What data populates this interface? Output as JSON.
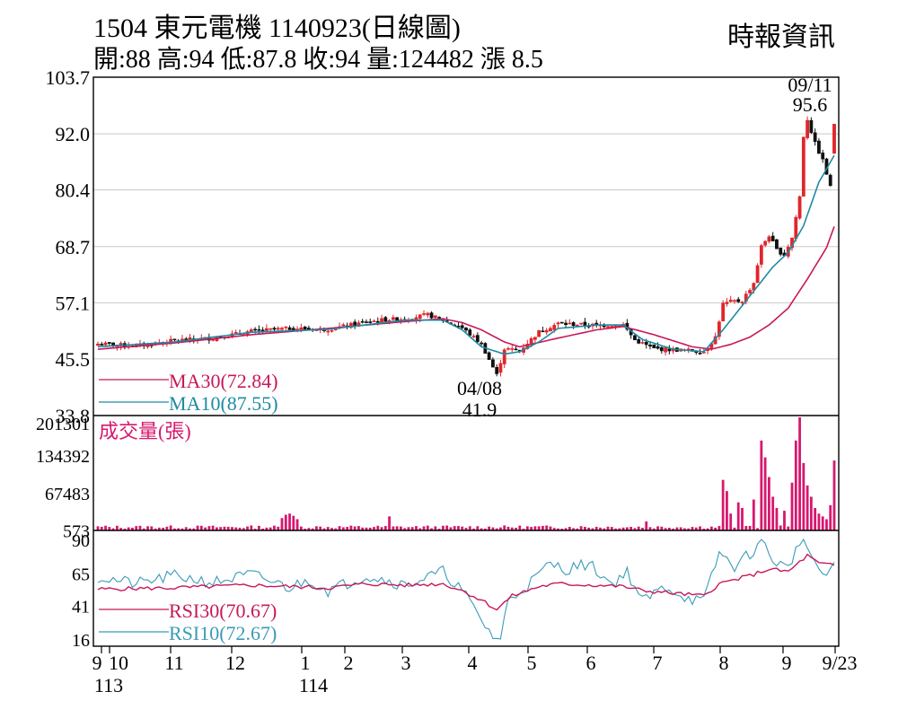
{
  "header": {
    "stock_code": "1504",
    "stock_name": "東元電機",
    "date_code": "1140923",
    "chart_kind": "(日線圖)",
    "open_label": "開:88",
    "high_label": "高:94",
    "low_label": "低:87.8",
    "close_label": "收:94",
    "volume_label": "量:124482",
    "change_label": "漲 8.5",
    "source": "時報資訊"
  },
  "colors": {
    "up": "#e0262a",
    "down": "#111111",
    "ma30": "#c8185a",
    "ma10": "#1f8aa4",
    "volume": "#d6186e",
    "rsi30": "#c8185a",
    "rsi10": "#3a9bb8",
    "grid": "#c8c8c8",
    "frame": "#000000"
  },
  "chart_data": [
    {
      "panel": "price",
      "type": "candlestick",
      "ylim": [
        33.8,
        103.7
      ],
      "y_ticks": [
        "103.7",
        "92.0",
        "80.4",
        "68.7",
        "57.1",
        "45.5",
        "33.8"
      ],
      "y_tick_values": [
        103.7,
        92.0,
        80.4,
        68.7,
        57.1,
        45.5,
        33.8
      ],
      "grid": true,
      "legend": [
        {
          "label": "MA30(72.84)",
          "color": "#c8185a"
        },
        {
          "label": "MA10(87.55)",
          "color": "#1f8aa4"
        }
      ],
      "legend_position": "bottom-left",
      "annotations": [
        {
          "date": "09/11",
          "value_label": "95.6",
          "value": 95.6,
          "kind": "high"
        },
        {
          "date": "04/08",
          "value_label": "41.9",
          "value": 41.9,
          "kind": "low"
        }
      ],
      "last_candle": {
        "open": 88,
        "high": 94,
        "low": 87.8,
        "close": 94
      },
      "x_month_labels": [
        "9",
        "10",
        "11",
        "12",
        "1",
        "2",
        "3",
        "4",
        "5",
        "6",
        "7",
        "8",
        "9",
        "9/23"
      ],
      "x_year_labels": [
        "113",
        "114"
      ],
      "approx_close_path": [
        [
          0,
          48.6
        ],
        [
          10,
          48.2
        ],
        [
          20,
          49.3
        ],
        [
          30,
          49.8
        ],
        [
          40,
          51.2
        ],
        [
          50,
          51.8
        ],
        [
          60,
          51.6
        ],
        [
          70,
          53.1
        ],
        [
          75,
          53.6
        ],
        [
          80,
          53.8
        ],
        [
          86,
          54.6
        ],
        [
          90,
          53.5
        ],
        [
          95,
          51.9
        ],
        [
          100,
          48.6
        ],
        [
          104,
          42.2
        ],
        [
          106,
          47.6
        ],
        [
          110,
          47.2
        ],
        [
          115,
          51.1
        ],
        [
          120,
          52.8
        ],
        [
          130,
          52.4
        ],
        [
          137,
          52.6
        ],
        [
          140,
          49.4
        ],
        [
          145,
          47.6
        ],
        [
          150,
          47.4
        ],
        [
          155,
          47.2
        ],
        [
          158,
          47.0
        ],
        [
          161,
          50.0
        ],
        [
          163,
          56.8
        ],
        [
          165,
          57.3
        ],
        [
          168,
          57.5
        ],
        [
          171,
          61.2
        ],
        [
          173,
          68.7
        ],
        [
          175,
          71.0
        ],
        [
          177,
          68.0
        ],
        [
          179,
          67.0
        ],
        [
          181,
          70.5
        ],
        [
          183,
          79.0
        ],
        [
          184,
          91.5
        ],
        [
          185,
          95.0
        ],
        [
          187,
          90.0
        ],
        [
          189,
          86.5
        ],
        [
          191,
          81.0
        ],
        [
          192,
          94.0
        ]
      ],
      "approx_ma30_path": [
        [
          0,
          47.5
        ],
        [
          20,
          48.8
        ],
        [
          40,
          50.5
        ],
        [
          60,
          51.8
        ],
        [
          80,
          53.2
        ],
        [
          90,
          53.8
        ],
        [
          95,
          53.0
        ],
        [
          100,
          51.5
        ],
        [
          106,
          49.0
        ],
        [
          110,
          48.0
        ],
        [
          120,
          49.8
        ],
        [
          130,
          51.5
        ],
        [
          137,
          52.2
        ],
        [
          145,
          50.5
        ],
        [
          155,
          48.0
        ],
        [
          160,
          47.5
        ],
        [
          165,
          48.5
        ],
        [
          170,
          50.0
        ],
        [
          175,
          52.5
        ],
        [
          180,
          56.0
        ],
        [
          185,
          62.0
        ],
        [
          190,
          68.5
        ],
        [
          192,
          72.84
        ]
      ],
      "approx_ma10_path": [
        [
          0,
          48.0
        ],
        [
          20,
          49.0
        ],
        [
          40,
          51.0
        ],
        [
          60,
          51.6
        ],
        [
          80,
          53.5
        ],
        [
          90,
          53.5
        ],
        [
          95,
          51.5
        ],
        [
          100,
          48.0
        ],
        [
          106,
          46.5
        ],
        [
          110,
          47.0
        ],
        [
          115,
          49.0
        ],
        [
          120,
          51.8
        ],
        [
          130,
          52.5
        ],
        [
          137,
          52.5
        ],
        [
          142,
          49.5
        ],
        [
          150,
          47.5
        ],
        [
          158,
          47.0
        ],
        [
          163,
          51.5
        ],
        [
          168,
          56.5
        ],
        [
          172,
          60.5
        ],
        [
          176,
          64.5
        ],
        [
          180,
          67.5
        ],
        [
          184,
          73.0
        ],
        [
          188,
          82.0
        ],
        [
          192,
          87.55
        ]
      ]
    },
    {
      "panel": "volume",
      "type": "bar",
      "title": "成交量(張)",
      "ylim": [
        0,
        201301
      ],
      "y_ticks": [
        "201301",
        "134392",
        "67483",
        "573"
      ],
      "y_tick_values": [
        201301,
        134392,
        67483,
        573
      ],
      "approx_spikes": [
        [
          48,
          22000
        ],
        [
          49,
          28000
        ],
        [
          50,
          30000
        ],
        [
          51,
          26000
        ],
        [
          52,
          20000
        ],
        [
          76,
          25000
        ],
        [
          143,
          16000
        ],
        [
          163,
          90000
        ],
        [
          164,
          70000
        ],
        [
          165,
          30000
        ],
        [
          167,
          50000
        ],
        [
          168,
          40000
        ],
        [
          171,
          55000
        ],
        [
          173,
          160000
        ],
        [
          174,
          130000
        ],
        [
          175,
          95000
        ],
        [
          176,
          60000
        ],
        [
          177,
          40000
        ],
        [
          179,
          35000
        ],
        [
          181,
          85000
        ],
        [
          182,
          160000
        ],
        [
          183,
          201301
        ],
        [
          184,
          120000
        ],
        [
          185,
          80000
        ],
        [
          186,
          60000
        ],
        [
          187,
          40000
        ],
        [
          188,
          30000
        ],
        [
          189,
          25000
        ],
        [
          190,
          20000
        ],
        [
          191,
          45000
        ],
        [
          192,
          124482
        ]
      ],
      "base_volume": 6000
    },
    {
      "panel": "rsi",
      "type": "line",
      "ylim": [
        16,
        90
      ],
      "y_ticks": [
        "90",
        "65",
        "41",
        "16"
      ],
      "y_tick_values": [
        90,
        65,
        41,
        16
      ],
      "legend": [
        {
          "label": "RSI30(70.67)",
          "color": "#c8185a"
        },
        {
          "label": "RSI10(72.67)",
          "color": "#3a9bb8"
        }
      ],
      "legend_position": "bottom-left",
      "approx_rsi30_path": [
        [
          0,
          53
        ],
        [
          20,
          54
        ],
        [
          40,
          56
        ],
        [
          60,
          54
        ],
        [
          70,
          57
        ],
        [
          80,
          56
        ],
        [
          90,
          57
        ],
        [
          95,
          52
        ],
        [
          100,
          45
        ],
        [
          104,
          38
        ],
        [
          108,
          48
        ],
        [
          115,
          55
        ],
        [
          120,
          57
        ],
        [
          130,
          56
        ],
        [
          137,
          55
        ],
        [
          142,
          52
        ],
        [
          150,
          50
        ],
        [
          158,
          48
        ],
        [
          162,
          57
        ],
        [
          170,
          63
        ],
        [
          175,
          68
        ],
        [
          180,
          66
        ],
        [
          185,
          78
        ],
        [
          188,
          72
        ],
        [
          192,
          70.67
        ]
      ],
      "approx_rsi10_path": [
        [
          0,
          62
        ],
        [
          10,
          57
        ],
        [
          20,
          63
        ],
        [
          30,
          58
        ],
        [
          40,
          64
        ],
        [
          50,
          54
        ],
        [
          55,
          60
        ],
        [
          60,
          52
        ],
        [
          70,
          63
        ],
        [
          75,
          60
        ],
        [
          80,
          56
        ],
        [
          90,
          66
        ],
        [
          95,
          52
        ],
        [
          100,
          30
        ],
        [
          103,
          18
        ],
        [
          105,
          16
        ],
        [
          107,
          45
        ],
        [
          112,
          56
        ],
        [
          118,
          72
        ],
        [
          122,
          68
        ],
        [
          128,
          72
        ],
        [
          134,
          57
        ],
        [
          138,
          66
        ],
        [
          142,
          44
        ],
        [
          148,
          55
        ],
        [
          154,
          46
        ],
        [
          158,
          44
        ],
        [
          162,
          80
        ],
        [
          166,
          70
        ],
        [
          171,
          82
        ],
        [
          173,
          90
        ],
        [
          176,
          75
        ],
        [
          180,
          68
        ],
        [
          183,
          90
        ],
        [
          186,
          80
        ],
        [
          189,
          60
        ],
        [
          192,
          72.67
        ]
      ]
    }
  ]
}
